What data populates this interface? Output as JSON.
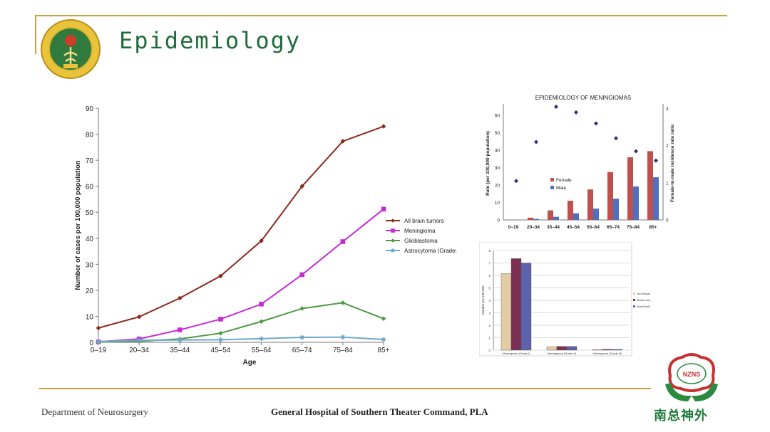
{
  "slide": {
    "title": "Epidemiology",
    "footer_left": "Department of Neurosurgery",
    "footer_center": "General Hospital of Southern Theater Command, PLA",
    "logo_text": "南总神外",
    "accent_color": "#c9a23c",
    "title_color": "#1f6b3a",
    "icons": [
      "hospital-emblem-icon",
      "nzns-brain-logo-icon"
    ]
  },
  "chart_data": [
    {
      "type": "line",
      "title": "",
      "xlabel": "Age",
      "ylabel": "Number of cases per 100,000 population",
      "categories": [
        "0–19",
        "20–34",
        "35–44",
        "45–54",
        "55–64",
        "65–74",
        "75–84",
        "85+"
      ],
      "ylim": [
        0,
        90
      ],
      "yticks": [
        0,
        10,
        20,
        30,
        40,
        50,
        60,
        70,
        80,
        90
      ],
      "grid": false,
      "legend": "right",
      "series": [
        {
          "name": "All brain tumors",
          "color": "#8b2a1e",
          "marker": "diamond",
          "values": [
            5.5,
            9.8,
            17,
            25.5,
            39,
            60,
            77.3,
            83
          ]
        },
        {
          "name": "Meningioma",
          "color": "#c62bd6",
          "marker": "square",
          "values": [
            0.2,
            1.3,
            4.8,
            8.9,
            14.7,
            26,
            38.7,
            51.2
          ]
        },
        {
          "name": "Glioblastoma",
          "color": "#4e9a45",
          "marker": "diamond",
          "values": [
            0.1,
            0.4,
            1.3,
            3.5,
            8,
            13,
            15.2,
            9.1
          ]
        },
        {
          "name": "Astrocytoma (Grades II–III",
          "color": "#6fa8c8",
          "marker": "star",
          "values": [
            0.3,
            0.8,
            0.9,
            1,
            1.4,
            1.9,
            2,
            1.1
          ]
        }
      ]
    },
    {
      "type": "bar",
      "title": "EPIDEMIOLOGY OF MENINGIOMAS",
      "xlabel": "",
      "ylabel": "Rate (per 100,000 population)",
      "y2label": "Female-to-male incidence rate ratio",
      "categories": [
        "0–19",
        "20–34",
        "35–44",
        "45–54",
        "55–64",
        "65–74",
        "75–84",
        "85+"
      ],
      "ylim": [
        0,
        65
      ],
      "yticks": [
        0,
        10,
        20,
        30,
        40,
        50,
        60
      ],
      "y2lim": [
        0,
        3.05
      ],
      "y2ticks": [
        0,
        1,
        2,
        3
      ],
      "legend": "center-left",
      "series": [
        {
          "name": "Female",
          "color": "#c0504d",
          "values": [
            0.2,
            1.3,
            5.5,
            11,
            17.5,
            27.5,
            36,
            39.5
          ]
        },
        {
          "name": "Male",
          "color": "#4f6fbf",
          "values": [
            0.1,
            0.6,
            1.8,
            3.8,
            6.5,
            12.2,
            19.2,
            24.5
          ]
        },
        {
          "name": "",
          "type": "scatter",
          "axis": "y2",
          "color": "#3b2a78",
          "values": [
            1.05,
            2.1,
            3.05,
            2.9,
            2.6,
            2.2,
            1.85,
            1.6
          ]
        }
      ]
    },
    {
      "type": "bar",
      "title": "",
      "xlabel": "",
      "ylabel": "Number per 100,000",
      "categories": [
        "Meningioma (Grade I)",
        "Meningioma (Grade II)",
        "Meningioma (Grade III)"
      ],
      "ylim": [
        0,
        8
      ],
      "yticks": [
        0,
        1,
        2,
        3,
        4,
        5,
        6,
        7,
        8
      ],
      "grid": true,
      "legend": "right",
      "series": [
        {
          "name": "Non-Hispanic white",
          "color": "#e2cda4",
          "values": [
            6.15,
            0.28,
            0.05
          ]
        },
        {
          "name": "African-American",
          "color": "#7b3052",
          "values": [
            7.35,
            0.3,
            0.07
          ]
        },
        {
          "name": "Asian/Pacific Islander",
          "color": "#5d62aa",
          "values": [
            7,
            0.3,
            0.06
          ]
        }
      ]
    }
  ]
}
